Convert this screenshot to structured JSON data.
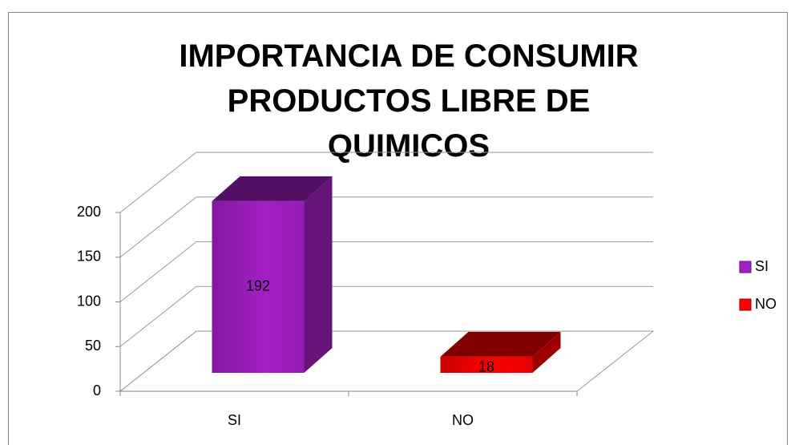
{
  "chart_data": {
    "type": "bar3d",
    "title": "IMPORTANCIA DE CONSUMIR PRODUCTOS LIBRE DE QUIMICOS",
    "categories": [
      "SI",
      "NO"
    ],
    "values": [
      192,
      18
    ],
    "colors": [
      "#a41fc8",
      "#ff0000"
    ],
    "ylim": [
      0,
      200
    ],
    "yticks": [
      0,
      50,
      100,
      150,
      200
    ],
    "grid": true,
    "legend": "right"
  }
}
